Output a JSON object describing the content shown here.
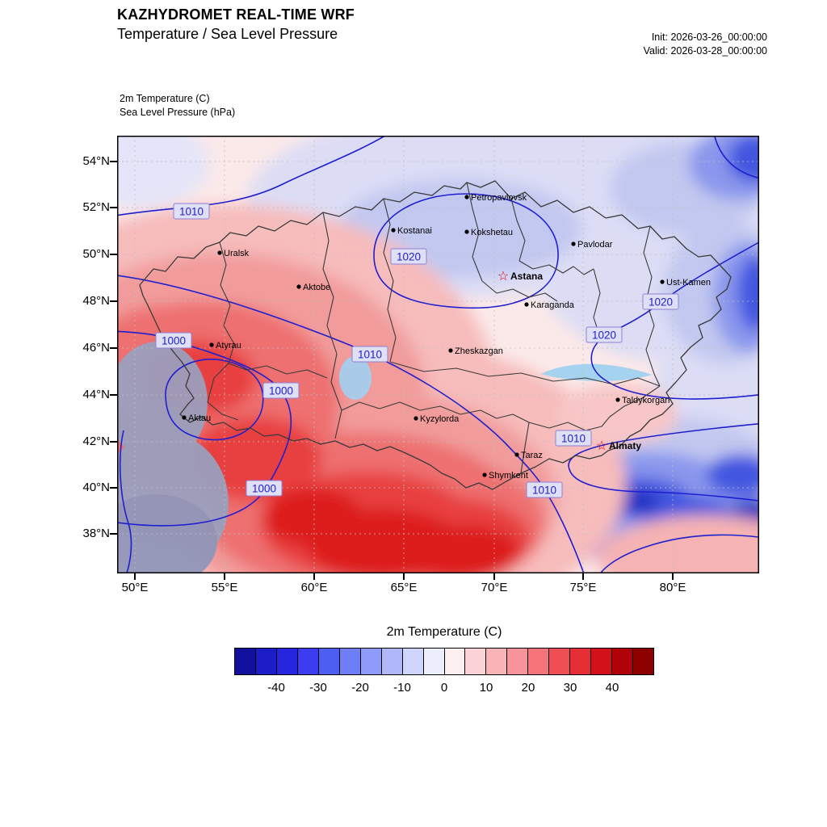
{
  "header": {
    "title_line1": "KAZHYDROMET REAL-TIME WRF",
    "title_line2": "Temperature / Sea Level Pressure",
    "init_label": "Init: 2026-03-26_00:00:00",
    "valid_label": "Valid: 2026-03-28_00:00:00"
  },
  "map": {
    "field_label_line1": "2m Temperature   (C)",
    "field_label_line2": "Sea Level Pressure   (hPa)",
    "lat_labels": [
      "54°N",
      "52°N",
      "50°N",
      "48°N",
      "46°N",
      "44°N",
      "42°N",
      "40°N",
      "38°N"
    ],
    "lon_labels": [
      "50°E",
      "55°E",
      "60°E",
      "65°E",
      "70°E",
      "75°E",
      "80°E"
    ],
    "cities": [
      {
        "name": "Petropavlovsk",
        "type": "dot"
      },
      {
        "name": "Kostanai",
        "type": "dot"
      },
      {
        "name": "Kokshetau",
        "type": "dot"
      },
      {
        "name": "Pavlodar",
        "type": "dot"
      },
      {
        "name": "Uralsk",
        "type": "dot"
      },
      {
        "name": "Astana",
        "type": "capital"
      },
      {
        "name": "Aktobe",
        "type": "dot"
      },
      {
        "name": "Ust-Kamen",
        "type": "dot"
      },
      {
        "name": "Karaganda",
        "type": "dot"
      },
      {
        "name": "Zheskazgan",
        "type": "dot"
      },
      {
        "name": "Atyrau",
        "type": "dot"
      },
      {
        "name": "Taldykorgan",
        "type": "dot"
      },
      {
        "name": "Aktau",
        "type": "dot"
      },
      {
        "name": "Kyzylorda",
        "type": "dot"
      },
      {
        "name": "Almaty",
        "type": "capital"
      },
      {
        "name": "Taraz",
        "type": "dot"
      },
      {
        "name": "Shymkent",
        "type": "dot"
      }
    ],
    "pressure_labels": [
      "1010",
      "1020",
      "1000",
      "1010",
      "1000",
      "1020",
      "1020",
      "1010",
      "1000",
      "1010"
    ]
  },
  "icons": {
    "capital_star": "☆"
  },
  "colors": {
    "pressure_contour": "#1f1fd0",
    "warm_core": "#dd1c1c",
    "cold_core": "#202ec0",
    "caspian_sea": "#98a1c0"
  },
  "colorbar": {
    "title": "2m Temperature  (C)",
    "ticks": [
      "-40",
      "-30",
      "-20",
      "-10",
      "0",
      "10",
      "20",
      "30",
      "40"
    ],
    "colors": [
      "#11119e",
      "#1c1cc8",
      "#2626e0",
      "#3c3cf0",
      "#4d5ff2",
      "#6e7ef7",
      "#8f9bf9",
      "#b0b8fb",
      "#d0d5fc",
      "#eceefe",
      "#fdeef0",
      "#fbd3d6",
      "#f9b4b8",
      "#f79499",
      "#f4747a",
      "#ef4e55",
      "#e62e35",
      "#d21118",
      "#b00008",
      "#8c0000"
    ]
  }
}
